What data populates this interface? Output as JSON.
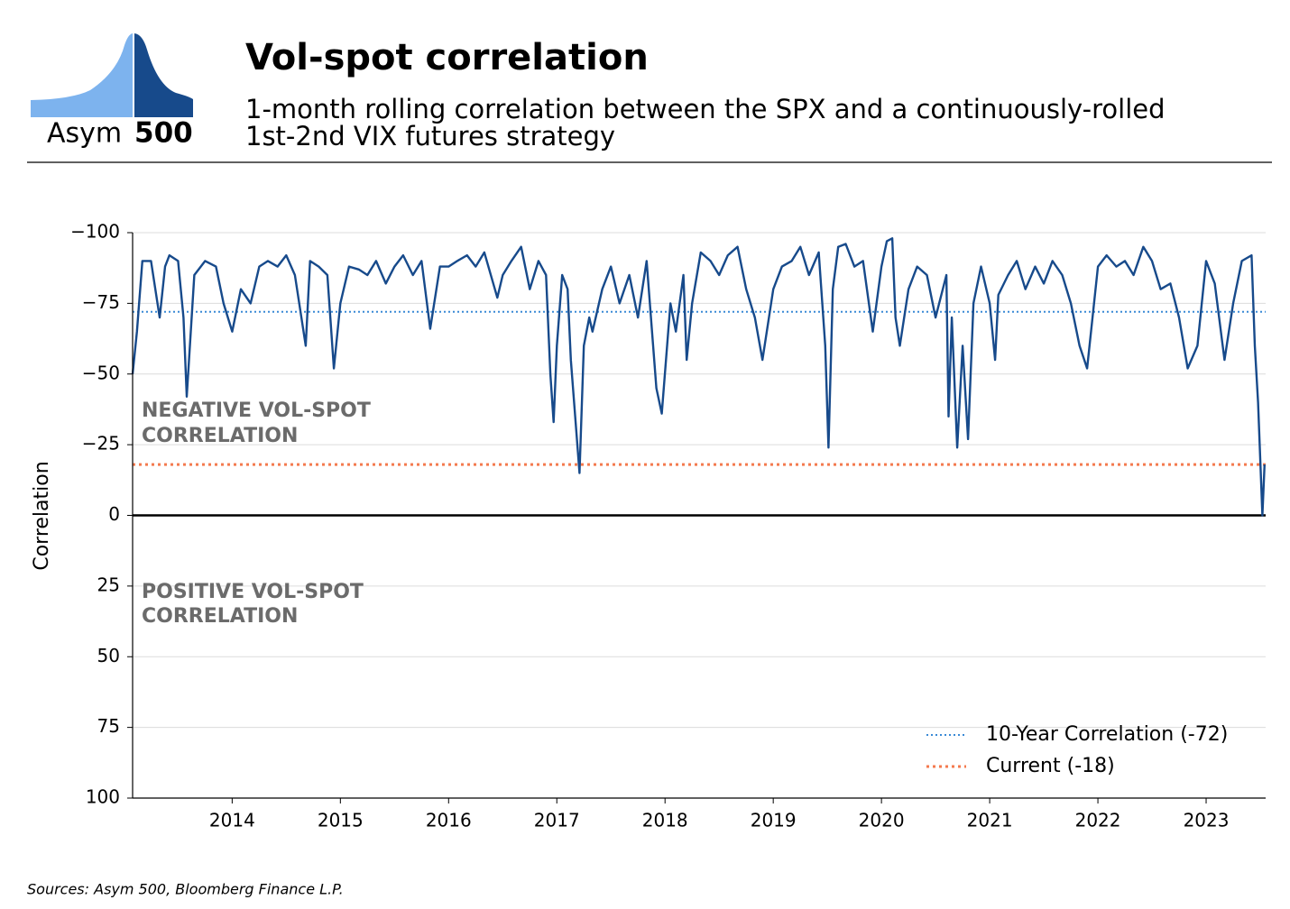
{
  "logo": {
    "word": "Asym",
    "number": "500"
  },
  "chart_data": {
    "type": "line",
    "title": "Vol-spot correlation",
    "subtitle": [
      "1-month rolling correlation between the SPX and a continuously-rolled",
      "1st-2nd VIX futures strategy"
    ],
    "y_label": "Correlation",
    "source": "Sources: Asym 500, Bloomberg Finance L.P.",
    "annotations": [
      {
        "lines": [
          "NEGATIVE VOL-SPOT",
          "CORRELATION"
        ]
      },
      {
        "lines": [
          "POSITIVE VOL-SPOT",
          "CORRELATION"
        ]
      }
    ],
    "x": [
      2013.08,
      2013.12,
      2013.17,
      2013.25,
      2013.33,
      2013.38,
      2013.42,
      2013.5,
      2013.55,
      2013.58,
      2013.65,
      2013.75,
      2013.85,
      2013.92,
      2014.0,
      2014.08,
      2014.17,
      2014.25,
      2014.33,
      2014.42,
      2014.5,
      2014.58,
      2014.68,
      2014.72,
      2014.8,
      2014.88,
      2014.94,
      2015.0,
      2015.08,
      2015.17,
      2015.25,
      2015.33,
      2015.42,
      2015.5,
      2015.58,
      2015.67,
      2015.75,
      2015.83,
      2015.92,
      2016.0,
      2016.08,
      2016.17,
      2016.25,
      2016.33,
      2016.45,
      2016.5,
      2016.58,
      2016.67,
      2016.75,
      2016.83,
      2016.9,
      2016.94,
      2016.97,
      2017.0,
      2017.05,
      2017.1,
      2017.13,
      2017.17,
      2017.21,
      2017.25,
      2017.3,
      2017.33,
      2017.42,
      2017.5,
      2017.58,
      2017.67,
      2017.75,
      2017.83,
      2017.92,
      2017.97,
      2018.05,
      2018.1,
      2018.17,
      2018.2,
      2018.25,
      2018.33,
      2018.42,
      2018.5,
      2018.58,
      2018.67,
      2018.75,
      2018.83,
      2018.9,
      2019.0,
      2019.08,
      2019.17,
      2019.25,
      2019.33,
      2019.42,
      2019.48,
      2019.51,
      2019.55,
      2019.6,
      2019.67,
      2019.75,
      2019.83,
      2019.92,
      2020.0,
      2020.05,
      2020.1,
      2020.13,
      2020.17,
      2020.25,
      2020.33,
      2020.42,
      2020.5,
      2020.6,
      2020.62,
      2020.65,
      2020.7,
      2020.75,
      2020.8,
      2020.85,
      2020.92,
      2021.0,
      2021.05,
      2021.08,
      2021.17,
      2021.25,
      2021.33,
      2021.42,
      2021.5,
      2021.58,
      2021.67,
      2021.75,
      2021.83,
      2021.9,
      2022.0,
      2022.08,
      2022.17,
      2022.25,
      2022.33,
      2022.42,
      2022.5,
      2022.58,
      2022.67,
      2022.75,
      2022.83,
      2022.92,
      2023.0,
      2023.08,
      2023.17,
      2023.25,
      2023.33,
      2023.42,
      2023.45,
      2023.48,
      2023.52,
      2023.54
    ],
    "series": [
      {
        "name": "Vol-spot correlation",
        "color": "#174a8b",
        "values": [
          -50,
          -65,
          -90,
          -90,
          -70,
          -88,
          -92,
          -90,
          -70,
          -42,
          -85,
          -90,
          -88,
          -75,
          -65,
          -80,
          -75,
          -88,
          -90,
          -88,
          -92,
          -85,
          -60,
          -90,
          -88,
          -85,
          -52,
          -75,
          -88,
          -87,
          -85,
          -90,
          -82,
          -88,
          -92,
          -85,
          -90,
          -66,
          -88,
          -88,
          -90,
          -92,
          -88,
          -93,
          -77,
          -85,
          -90,
          -95,
          -80,
          -90,
          -85,
          -50,
          -33,
          -60,
          -85,
          -80,
          -55,
          -35,
          -15,
          -60,
          -70,
          -65,
          -80,
          -88,
          -75,
          -85,
          -70,
          -90,
          -45,
          -36,
          -75,
          -65,
          -85,
          -55,
          -75,
          -93,
          -90,
          -85,
          -92,
          -95,
          -80,
          -70,
          -55,
          -80,
          -88,
          -90,
          -95,
          -85,
          -93,
          -60,
          -24,
          -80,
          -95,
          -96,
          -88,
          -90,
          -65,
          -88,
          -97,
          -98,
          -70,
          -60,
          -80,
          -88,
          -85,
          -70,
          -85,
          -35,
          -70,
          -24,
          -60,
          -27,
          -75,
          -88,
          -75,
          -55,
          -78,
          -85,
          -90,
          -80,
          -88,
          -82,
          -90,
          -85,
          -75,
          -60,
          -52,
          -88,
          -92,
          -88,
          -90,
          -85,
          -95,
          -90,
          -80,
          -82,
          -70,
          -52,
          -60,
          -90,
          -82,
          -55,
          -75,
          -90,
          -92,
          -60,
          -40,
          0,
          -18
        ]
      }
    ],
    "reference_lines": [
      {
        "name": "10-Year Correlation (-72)",
        "value": -72,
        "color": "#3a8ad6",
        "style": "dotted"
      },
      {
        "name": "Current (-18)",
        "value": -18,
        "color": "#f47a4e",
        "style": "dotted"
      }
    ],
    "xlim": [
      2013.08,
      2023.55
    ],
    "xticks": [
      2014,
      2015,
      2016,
      2017,
      2018,
      2019,
      2020,
      2021,
      2022,
      2023
    ],
    "ylim": [
      -100,
      100
    ],
    "y_inverted": true,
    "yticks": [
      {
        "value": -100,
        "label": "−100"
      },
      {
        "value": -75,
        "label": "−75"
      },
      {
        "value": -50,
        "label": "−50"
      },
      {
        "value": -25,
        "label": "−25"
      },
      0,
      25,
      50,
      75,
      100
    ],
    "grid": true,
    "legend": "lower-right"
  }
}
